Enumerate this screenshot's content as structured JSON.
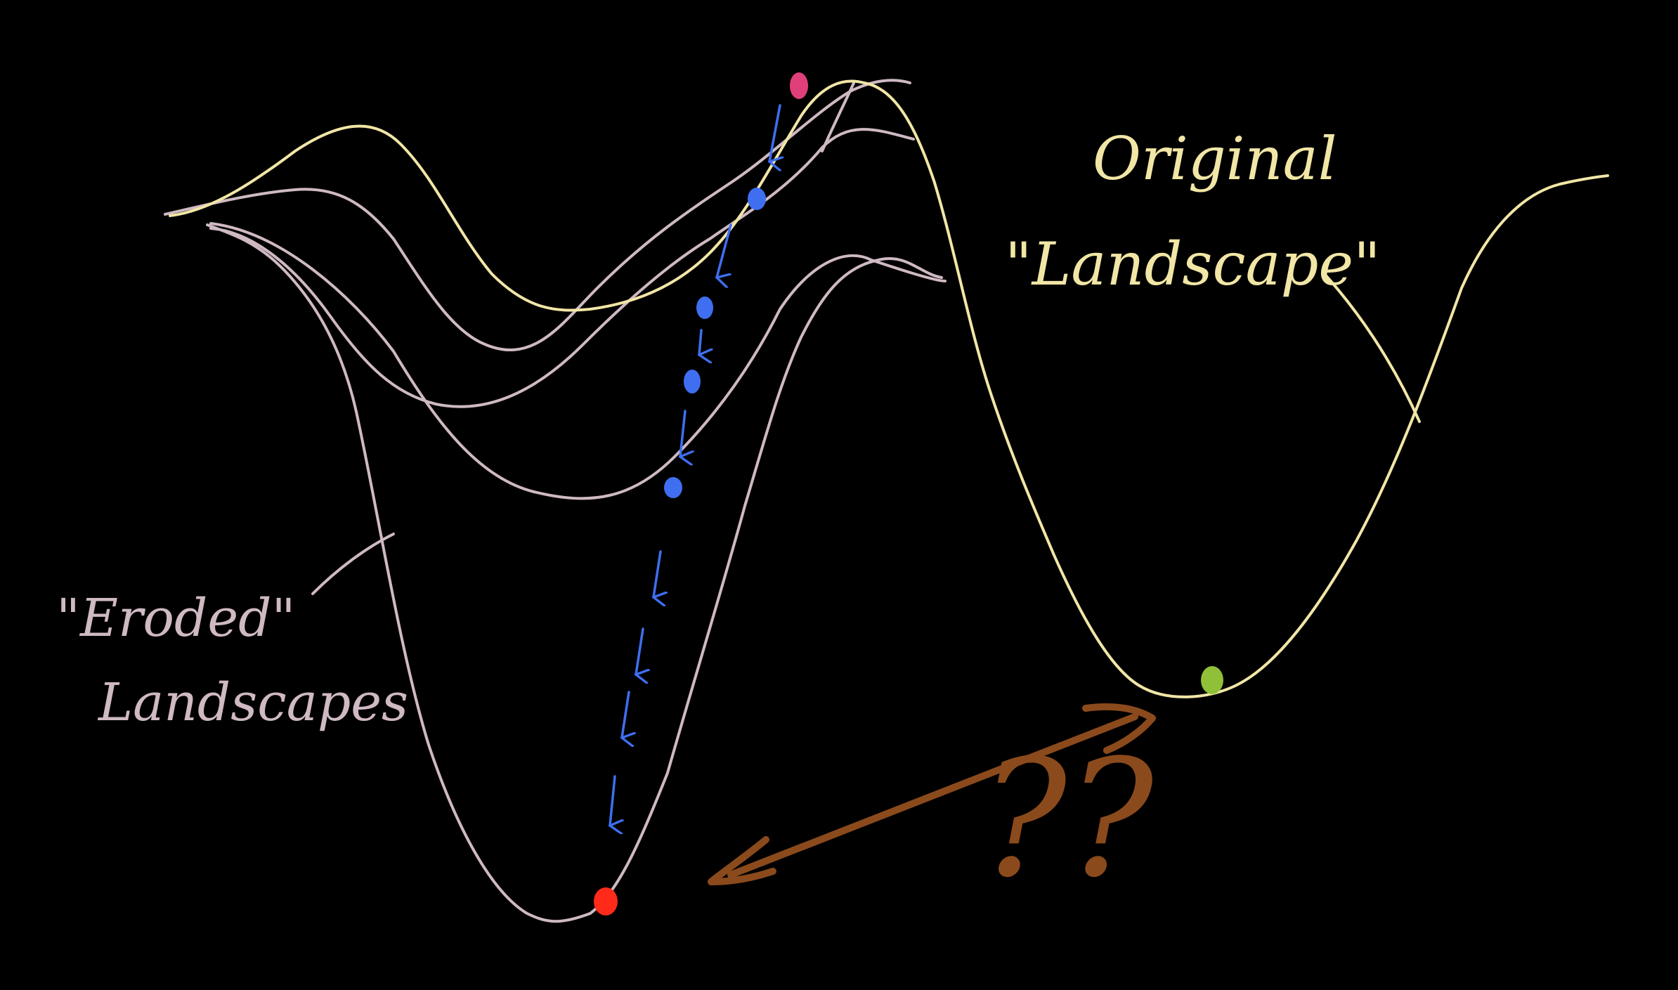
{
  "labels": {
    "original_line1": "Original",
    "original_line2": "\"Landscape\"",
    "eroded_line1": "\"Eroded\"",
    "eroded_line2": "Landscapes",
    "question": "??"
  },
  "colors": {
    "background": "#000000",
    "original_curve": "#f2e6a6",
    "eroded_curves": "#cfb9c3",
    "descent_path": "#3f6ff0",
    "start_ball": "#e0407a",
    "local_min_ball": "#8fc038",
    "global_min_ball": "#ff2a1a",
    "question_arrow": "#8b4a1c"
  }
}
